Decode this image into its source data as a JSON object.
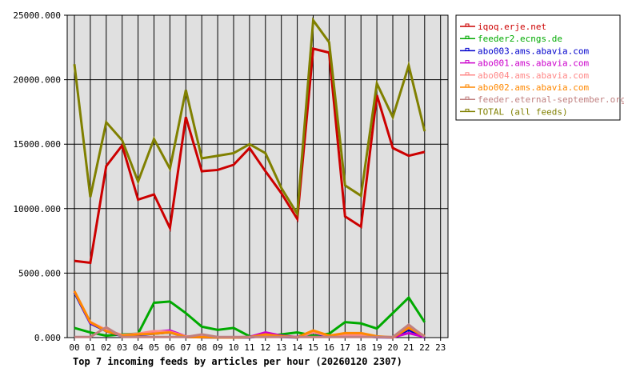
{
  "chart_data": {
    "type": "line",
    "title": "Top 7 incoming feeds by articles per hour (20260120 2307)",
    "xlabel": "",
    "ylabel": "",
    "ylim": [
      0,
      25000
    ],
    "yticks": [
      "0.000",
      "5000.000",
      "10000.000",
      "15000.000",
      "20000.000",
      "25000.000"
    ],
    "ytick_values": [
      0,
      5000,
      10000,
      15000,
      20000,
      25000
    ],
    "grid": true,
    "legend_position": "right",
    "categories": [
      "00",
      "01",
      "02",
      "03",
      "04",
      "05",
      "06",
      "07",
      "08",
      "09",
      "10",
      "11",
      "12",
      "13",
      "14",
      "15",
      "16",
      "17",
      "18",
      "19",
      "20",
      "21",
      "22",
      "23"
    ],
    "series": [
      {
        "name": "iqoq.erje.net",
        "color": "#cc0000",
        "values": [
          5950,
          5800,
          13300,
          14900,
          10700,
          11100,
          8500,
          17100,
          12900,
          13000,
          13400,
          14700,
          12900,
          11200,
          9200,
          22400,
          22100,
          9400,
          8600,
          18800,
          14700,
          14100,
          14400
        ]
      },
      {
        "name": "feeder2.ecngs.de",
        "color": "#00aa00",
        "values": [
          750,
          400,
          150,
          250,
          300,
          2700,
          2800,
          1900,
          850,
          600,
          750,
          100,
          100,
          250,
          400,
          150,
          300,
          1200,
          1100,
          700,
          1900,
          3100,
          1200
        ]
      },
      {
        "name": "abo003.ams.abavia.com",
        "color": "#0000cc",
        "values": [
          3500,
          1100,
          500,
          100,
          200,
          300,
          400,
          50,
          20,
          10,
          10,
          10,
          150,
          50,
          10,
          400,
          50,
          150,
          150,
          20,
          10,
          600,
          10
        ]
      },
      {
        "name": "abo001.ams.abavia.com",
        "color": "#cc00cc",
        "values": [
          3600,
          1150,
          550,
          150,
          250,
          450,
          550,
          100,
          50,
          20,
          20,
          50,
          400,
          150,
          50,
          450,
          100,
          250,
          250,
          50,
          20,
          350,
          50
        ]
      },
      {
        "name": "abo004.ams.abavia.com",
        "color": "#ff8888",
        "values": [
          3600,
          1200,
          600,
          200,
          300,
          500,
          450,
          100,
          80,
          20,
          20,
          30,
          200,
          100,
          30,
          400,
          150,
          200,
          200,
          50,
          20,
          900,
          100
        ]
      },
      {
        "name": "abo002.ams.abavia.com",
        "color": "#ff8800",
        "values": [
          3600,
          1200,
          500,
          150,
          250,
          300,
          400,
          50,
          30,
          10,
          10,
          30,
          250,
          100,
          20,
          550,
          150,
          350,
          350,
          100,
          20,
          750,
          100
        ]
      },
      {
        "name": "feeder.eternal-september.org",
        "color": "#c08080",
        "values": [
          50,
          50,
          800,
          50,
          50,
          50,
          50,
          50,
          250,
          50,
          50,
          50,
          50,
          50,
          50,
          50,
          50,
          50,
          50,
          50,
          50,
          1000,
          50
        ]
      },
      {
        "name": "TOTAL (all feeds)",
        "color": "#808000",
        "values": [
          21200,
          10900,
          16700,
          15300,
          12100,
          15400,
          13100,
          19200,
          13900,
          14100,
          14300,
          15000,
          14300,
          11600,
          9600,
          24600,
          22900,
          11800,
          11000,
          19700,
          17100,
          21100,
          16000
        ]
      }
    ]
  },
  "plot": {
    "background": "#e0e0e0",
    "grid_color": "#000000"
  }
}
